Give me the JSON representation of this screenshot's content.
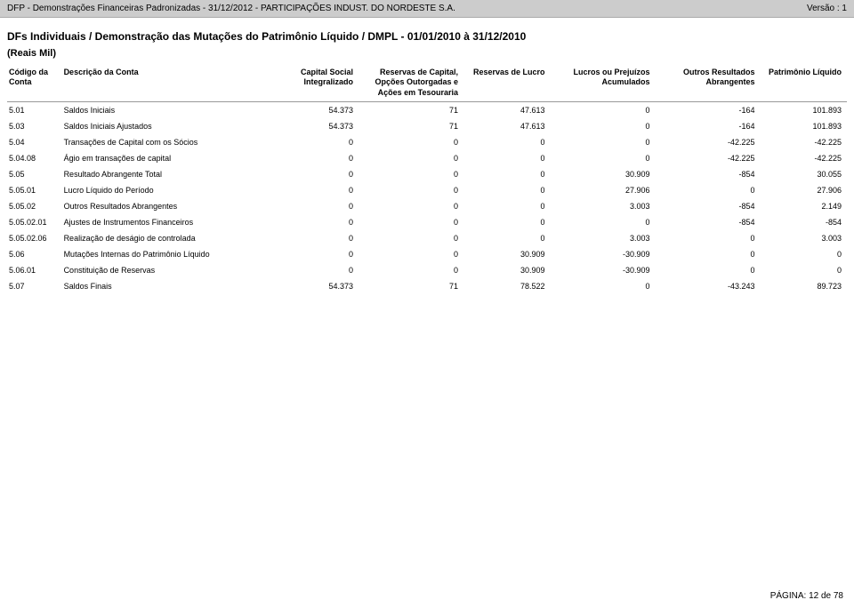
{
  "header": {
    "left": "DFP - Demonstrações Financeiras Padronizadas - 31/12/2012 - PARTICIPAÇÕES INDUST. DO NORDESTE S.A.",
    "right": "Versão : 1"
  },
  "section_title": "DFs Individuais / Demonstração das Mutações do Patrimônio Líquido / DMPL - 01/01/2010 à 31/12/2010",
  "subtitle": "(Reais Mil)",
  "columns": [
    "Código da\nConta",
    "Descrição da Conta",
    "Capital Social\nIntegralizado",
    "Reservas de Capital,\nOpções Outorgadas e\nAções em Tesouraria",
    "Reservas de Lucro",
    "Lucros ou Prejuízos\nAcumulados",
    "Outros Resultados\nAbrangentes",
    "Patrimônio Líquido"
  ],
  "rows": [
    {
      "code": "5.01",
      "desc": "Saldos Iniciais",
      "c1": "54.373",
      "c2": "71",
      "c3": "47.613",
      "c4": "0",
      "c5": "-164",
      "c6": "101.893"
    },
    {
      "code": "5.03",
      "desc": "Saldos Iniciais Ajustados",
      "c1": "54.373",
      "c2": "71",
      "c3": "47.613",
      "c4": "0",
      "c5": "-164",
      "c6": "101.893"
    },
    {
      "code": "5.04",
      "desc": "Transações de Capital com os Sócios",
      "c1": "0",
      "c2": "0",
      "c3": "0",
      "c4": "0",
      "c5": "-42.225",
      "c6": "-42.225"
    },
    {
      "code": "5.04.08",
      "desc": "Ágio em transações de capital",
      "c1": "0",
      "c2": "0",
      "c3": "0",
      "c4": "0",
      "c5": "-42.225",
      "c6": "-42.225"
    },
    {
      "code": "5.05",
      "desc": "Resultado Abrangente Total",
      "c1": "0",
      "c2": "0",
      "c3": "0",
      "c4": "30.909",
      "c5": "-854",
      "c6": "30.055"
    },
    {
      "code": "5.05.01",
      "desc": "Lucro Líquido do Período",
      "c1": "0",
      "c2": "0",
      "c3": "0",
      "c4": "27.906",
      "c5": "0",
      "c6": "27.906"
    },
    {
      "code": "5.05.02",
      "desc": "Outros Resultados Abrangentes",
      "c1": "0",
      "c2": "0",
      "c3": "0",
      "c4": "3.003",
      "c5": "-854",
      "c6": "2.149"
    },
    {
      "code": "5.05.02.01",
      "desc": "Ajustes de Instrumentos Financeiros",
      "c1": "0",
      "c2": "0",
      "c3": "0",
      "c4": "0",
      "c5": "-854",
      "c6": "-854"
    },
    {
      "code": "5.05.02.06",
      "desc": "Realização de deságio de controlada",
      "c1": "0",
      "c2": "0",
      "c3": "0",
      "c4": "3.003",
      "c5": "0",
      "c6": "3.003"
    },
    {
      "code": "5.06",
      "desc": "Mutações Internas do Patrimônio Líquido",
      "c1": "0",
      "c2": "0",
      "c3": "30.909",
      "c4": "-30.909",
      "c5": "0",
      "c6": "0"
    },
    {
      "code": "5.06.01",
      "desc": "Constituição de Reservas",
      "c1": "0",
      "c2": "0",
      "c3": "30.909",
      "c4": "-30.909",
      "c5": "0",
      "c6": "0"
    },
    {
      "code": "5.07",
      "desc": "Saldos Finais",
      "c1": "54.373",
      "c2": "71",
      "c3": "78.522",
      "c4": "0",
      "c5": "-43.243",
      "c6": "89.723"
    }
  ],
  "footer": "PÁGINA: 12 de 78",
  "style": {
    "header_bg": "#cccccc",
    "text_color": "#000000",
    "title_fontsize": 12,
    "body_fontsize": 9,
    "footer_fontsize": 10
  }
}
